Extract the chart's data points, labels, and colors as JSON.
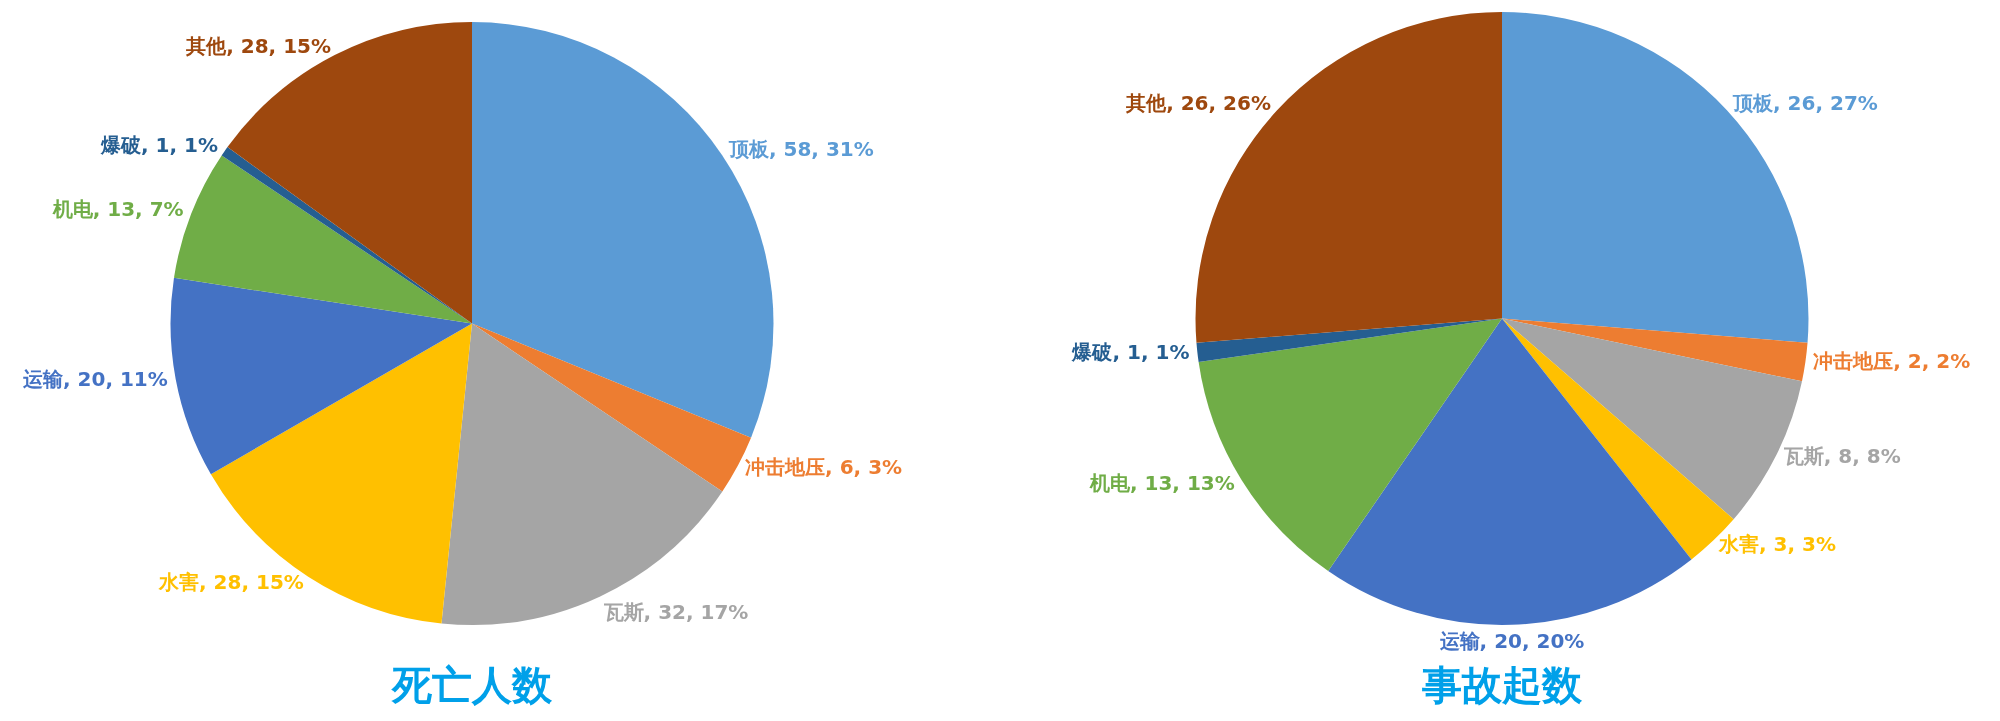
{
  "chart_data": [
    {
      "type": "pie",
      "title": "死亡人数",
      "categories": [
        "顶板",
        "冲击地压",
        "瓦斯",
        "水害",
        "运输",
        "机电",
        "爆破",
        "其他"
      ],
      "values": [
        58,
        6,
        32,
        28,
        20,
        13,
        1,
        28
      ],
      "colors": [
        "#5b9bd5",
        "#ed7d31",
        "#a5a5a5",
        "#ffc000",
        "#4472c4",
        "#70ad47",
        "#255e91",
        "#9e480e"
      ],
      "value_labels": [
        ", 58, 31%",
        ", 6, 3%",
        ", 32, 17%",
        ", 28, 15%",
        ", 20, 11%",
        ", 13, 7%",
        ", 1, 1%",
        ", 28, 15%"
      ],
      "legend": false
    },
    {
      "type": "pie",
      "title": "事故起数",
      "categories": [
        "顶板",
        "冲击地压",
        "瓦斯",
        "水害",
        "运输",
        "机电",
        "爆破",
        "其他"
      ],
      "values": [
        26,
        2,
        8,
        3,
        20,
        13,
        1,
        26
      ],
      "colors": [
        "#5b9bd5",
        "#ed7d31",
        "#a5a5a5",
        "#ffc000",
        "#4472c4",
        "#70ad47",
        "#255e91",
        "#9e480e"
      ],
      "value_labels": [
        ", 26, 27%",
        ", 2, 2%",
        ", 8, 8%",
        ", 3, 3%",
        ", 20, 20%",
        ", 13, 13%",
        ", 1, 1%",
        ", 26, 26%"
      ],
      "legend": false
    }
  ]
}
